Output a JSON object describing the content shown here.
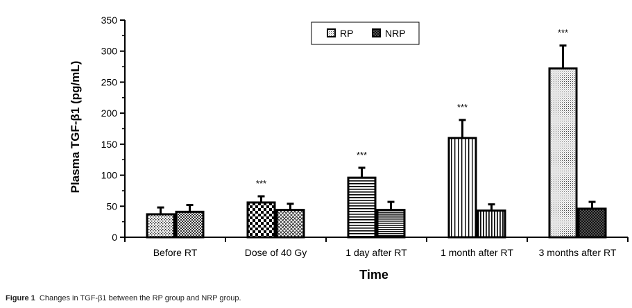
{
  "chart_data": {
    "type": "bar",
    "title": "",
    "xlabel": "Time",
    "ylabel": "Plasma TGF-β1 (pg/mL)",
    "ylim": [
      0,
      350
    ],
    "yticks": [
      0,
      50,
      100,
      150,
      200,
      250,
      300,
      350
    ],
    "categories": [
      "Before RT",
      "Dose of 40 Gy",
      "1 day after RT",
      "1 month after RT",
      "3 months after RT"
    ],
    "series": [
      {
        "name": "RP",
        "values": [
          37,
          56,
          96,
          160,
          272
        ],
        "errors": [
          11,
          10,
          16,
          29,
          37
        ]
      },
      {
        "name": "NRP",
        "values": [
          41,
          44,
          44,
          43,
          46
        ],
        "errors": [
          11,
          10,
          13,
          10,
          11
        ]
      }
    ],
    "annotations": [
      {
        "category": "Dose of 40 Gy",
        "text": "***"
      },
      {
        "category": "1 day after RT",
        "text": "***"
      },
      {
        "category": "1 month after RT",
        "text": "***"
      },
      {
        "category": "3 months after RT",
        "text": "***"
      }
    ],
    "legend_position": "top-center"
  },
  "caption": {
    "label": "Figure 1",
    "text": "Changes in TGF-β1 between the RP group and NRP group."
  }
}
